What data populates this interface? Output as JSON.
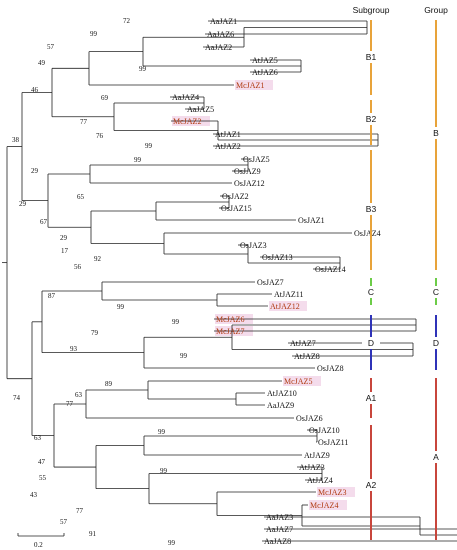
{
  "headers": {
    "subgroup": "Subgroup",
    "group": "Group"
  },
  "scale_label": "0.2",
  "colors": {
    "highlight_text": "#b03a10",
    "highlight_box": "#f4dcec",
    "bar_B": "#e8a33a",
    "bar_C": "#6ccc48",
    "bar_D": "#2f33b8",
    "bar_A": "#c8463c"
  },
  "leaves": [
    {
      "label": "AaJAZ1",
      "highlight": false
    },
    {
      "label": "AaJAZ6",
      "highlight": false
    },
    {
      "label": "AaJAZ2",
      "highlight": false
    },
    {
      "label": "AtJAZ5",
      "highlight": false
    },
    {
      "label": "AtJAZ6",
      "highlight": false
    },
    {
      "label": "McJAZ1",
      "highlight": true
    },
    {
      "label": "AaJAZ4",
      "highlight": false
    },
    {
      "label": "AaJAZ5",
      "highlight": false
    },
    {
      "label": "McJAZ2",
      "highlight": true
    },
    {
      "label": "AtJAZ1",
      "highlight": false
    },
    {
      "label": "AtJAZ2",
      "highlight": false
    },
    {
      "label": "OsJAZ5",
      "highlight": false
    },
    {
      "label": "OsJAZ9",
      "highlight": false
    },
    {
      "label": "OsJAZ12",
      "highlight": false
    },
    {
      "label": "OsJAZ2",
      "highlight": false
    },
    {
      "label": "OsJAZ15",
      "highlight": false
    },
    {
      "label": "OsJAZ1",
      "highlight": false
    },
    {
      "label": "OsJAZ4",
      "highlight": false
    },
    {
      "label": "OsJAZ3",
      "highlight": false
    },
    {
      "label": "OsJAZ13",
      "highlight": false
    },
    {
      "label": "OsJAZ14",
      "highlight": false
    },
    {
      "label": "OsJAZ7",
      "highlight": false
    },
    {
      "label": "AtJAZ11",
      "highlight": false
    },
    {
      "label": "AtJAZ12",
      "highlight": true
    },
    {
      "label": "McJAZ6",
      "highlight": true
    },
    {
      "label": "McJAZ7",
      "highlight": true
    },
    {
      "label": "AtJAZ7",
      "highlight": false
    },
    {
      "label": "AtJAZ8",
      "highlight": false
    },
    {
      "label": "OsJAZ8",
      "highlight": false
    },
    {
      "label": "McJAZ5",
      "highlight": true
    },
    {
      "label": "AtJAZ10",
      "highlight": false
    },
    {
      "label": "AaJAZ9",
      "highlight": false
    },
    {
      "label": "OsJAZ6",
      "highlight": false
    },
    {
      "label": "OsJAZ10",
      "highlight": false
    },
    {
      "label": "OsJAZ11",
      "highlight": false
    },
    {
      "label": "AtJAZ9",
      "highlight": false
    },
    {
      "label": "AtJAZ3",
      "highlight": false
    },
    {
      "label": "AtJAZ4",
      "highlight": false
    },
    {
      "label": "McJAZ3",
      "highlight": true
    },
    {
      "label": "McJAZ4",
      "highlight": true
    },
    {
      "label": "AaJAZ3",
      "highlight": false
    },
    {
      "label": "AaJAZ7",
      "highlight": false
    },
    {
      "label": "AaJAZ8",
      "highlight": false
    }
  ],
  "bootstrap": [
    "72",
    "99",
    "57",
    "99",
    "49",
    "46",
    "69",
    "77",
    "76",
    "99",
    "38",
    "99",
    "29",
    "29",
    "65",
    "67",
    "29",
    "17",
    "92",
    "56",
    "87",
    "99",
    "99",
    "79",
    "93",
    "99",
    "89",
    "63",
    "77",
    "74",
    "99",
    "63",
    "47",
    "99",
    "55",
    "43",
    "77",
    "57",
    "91",
    "99"
  ],
  "subgroups": [
    "B1",
    "B2",
    "B3",
    "C",
    "D",
    "A1",
    "A2"
  ],
  "groups": [
    "B",
    "C",
    "D",
    "A"
  ]
}
